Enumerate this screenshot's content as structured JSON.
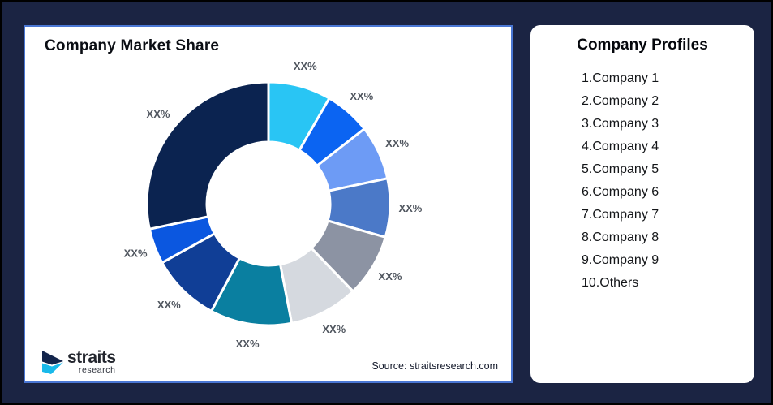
{
  "page": {
    "background_color": "#1B2443",
    "outer_border_color": "#000000"
  },
  "chart_card": {
    "title": "Company Market Share",
    "source": "Source: straitsresearch.com",
    "border_color": "#4A77D4",
    "logo": {
      "brand": "straits",
      "sub": "research",
      "navy_color": "#13254C",
      "cyan_color": "#19B9EA"
    }
  },
  "profiles_card": {
    "title": "Company Profiles",
    "items": [
      "1.Company 1",
      "2.Company 2",
      "3.Company 3",
      "4.Company 4",
      "5.Company 5",
      "6.Company 6",
      "7.Company 7",
      "8.Company 8",
      "9.Company 9",
      "10.Others"
    ]
  },
  "chart_data": {
    "type": "pie",
    "subtype": "donut",
    "title": "Company Market Share",
    "values_masked": true,
    "start_angle_deg": 0,
    "direction": "clockwise",
    "inner_radius_ratio": 0.5,
    "label_color": "#50565F",
    "gap_color": "#ffffff",
    "slices": [
      {
        "name": "Company 1",
        "label": "XX%",
        "color": "#29C5F4",
        "angle_deg": 30,
        "est_share_pct": 8.3
      },
      {
        "name": "Company 2",
        "label": "XX%",
        "color": "#0B64F2",
        "angle_deg": 22,
        "est_share_pct": 6.1
      },
      {
        "name": "Company 3",
        "label": "XX%",
        "color": "#6D9BF5",
        "angle_deg": 26,
        "est_share_pct": 7.2
      },
      {
        "name": "Company 4",
        "label": "XX%",
        "color": "#4B79C8",
        "angle_deg": 28,
        "est_share_pct": 7.8
      },
      {
        "name": "Company 5",
        "label": "XX%",
        "color": "#8C93A3",
        "angle_deg": 30,
        "est_share_pct": 8.3
      },
      {
        "name": "Company 6",
        "label": "XX%",
        "color": "#D5D9DF",
        "angle_deg": 33,
        "est_share_pct": 9.2
      },
      {
        "name": "Company 7",
        "label": "XX%",
        "color": "#0A7FA0",
        "angle_deg": 39,
        "est_share_pct": 10.8
      },
      {
        "name": "Company 8",
        "label": "XX%",
        "color": "#103E96",
        "angle_deg": 33,
        "est_share_pct": 9.2
      },
      {
        "name": "Company 9",
        "label": "XX%",
        "color": "#0B57E0",
        "angle_deg": 17,
        "est_share_pct": 4.7
      },
      {
        "name": "Others",
        "label": "XX%",
        "color": "#0B2350",
        "angle_deg": 102,
        "est_share_pct": 28.3
      }
    ]
  }
}
